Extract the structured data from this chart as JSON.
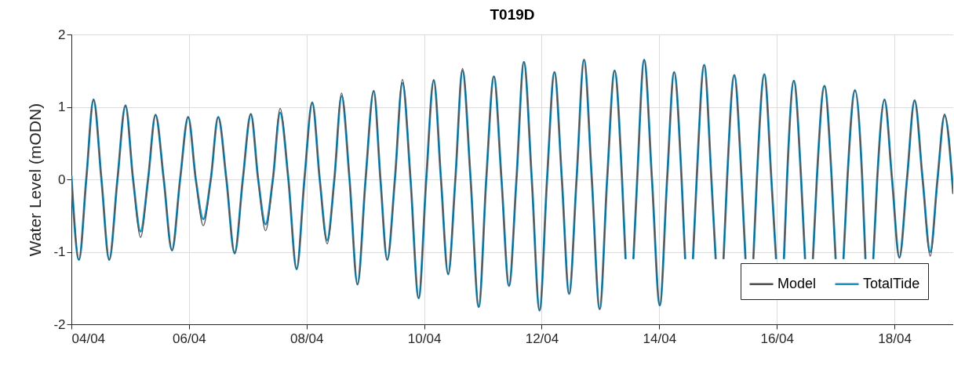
{
  "chart_data": {
    "type": "line",
    "title": "T019D",
    "ylabel": "Water Level (mODN)",
    "x": [
      "--04-04T00:00",
      "--04-04T03:06",
      "--04-04T06:04",
      "--04-04T09:03",
      "--04-04T12:16",
      "--04-04T15:27",
      "--04-04T18:48",
      "--04-04T22:05",
      "--04-05T01:11",
      "--04-05T04:15",
      "--04-05T07:18",
      "--04-05T10:21",
      "--04-05T13:42",
      "--04-05T17:04",
      "--04-05T20:23",
      "--04-05T23:41",
      "--04-06T02:47",
      "--04-06T05:51",
      "--04-06T08:54",
      "--04-06T11:56",
      "--04-06T15:17",
      "--04-06T18:39",
      "--04-06T21:59",
      "--04-07T01:16",
      "--04-07T04:15",
      "--04-07T07:16",
      "--04-07T10:15",
      "--04-07T13:13",
      "--04-07T16:35",
      "--04-07T19:57",
      "--04-07T23:08",
      "--04-08T02:20",
      "--04-08T05:23",
      "--04-08T08:25",
      "--04-08T11:21",
      "--04-08T14:18",
      "--04-08T17:33",
      "--04-08T20:48",
      "--04-09T00:06",
      "--04-09T03:26",
      "--04-09T06:10",
      "--04-09T08:57",
      "--04-09T12:04",
      "--04-09T15:09",
      "--04-09T18:27",
      "--04-09T21:46",
      "--04-10T00:52",
      "--04-10T03:56",
      "--04-10T06:53",
      "--04-10T09:49",
      "--04-10T12:45",
      "--04-10T15:40",
      "--04-10T18:59",
      "--04-10T22:18",
      "--04-11T01:22",
      "--04-11T04:29",
      "--04-11T07:35",
      "--04-11T10:39",
      "--04-11T13:42",
      "--04-11T16:44",
      "--04-11T19:57",
      "--04-11T23:08",
      "--04-12T02:11",
      "--04-12T05:12",
      "--04-12T08:14",
      "--04-12T11:12",
      "--04-12T14:14",
      "--04-12T17:17",
      "--04-12T20:28",
      "--04-12T23:41",
      "--04-13T02:43",
      "--04-13T05:46",
      "--04-13T08:48",
      "--04-13T10:15",
      "--04-13T11:50",
      "--04-13T13:26",
      "--04-13T14:59",
      "--04-13T17:50",
      "--04-13T21:01",
      "--04-14T00:13",
      "--04-14T03:12",
      "--04-14T06:04",
      "--04-14T09:07",
      "--04-14T10:34",
      "--04-14T12:10",
      "--04-14T13:45",
      "--04-14T15:16",
      "--04-14T18:20",
      "--04-14T21:17",
      "--04-14T23:02",
      "--04-15T00:39",
      "--04-15T02:14",
      "--04-15T03:40",
      "--04-15T06:37",
      "--04-15T09:36",
      "--04-15T11:12",
      "--04-15T12:48",
      "--04-15T14:24",
      "--04-15T15:50",
      "--04-15T18:53",
      "--04-15T21:46",
      "--04-15T23:41",
      "--04-16T01:16",
      "--04-16T02:53",
      "--04-16T04:09",
      "--04-16T06:56",
      "--04-16T09:55",
      "--04-16T11:31",
      "--04-16T13:08",
      "--04-16T14:43",
      "--04-16T16:19",
      "--04-16T19:25",
      "--04-16T22:24",
      "--04-17T00:00",
      "--04-17T01:36",
      "--04-17T03:12",
      "--04-17T04:48",
      "--04-17T07:54",
      "--04-17T10:52",
      "--04-17T12:10",
      "--04-17T13:45",
      "--04-17T15:22",
      "--04-17T16:58",
      "--04-17T19:57",
      "--04-17T23:02",
      "--04-18T02:01",
      "--04-18T05:07",
      "--04-18T08:14",
      "--04-18T11:31",
      "--04-18T14:37",
      "--04-18T17:35",
      "--04-18T20:28",
      "--04-19T00:00"
    ],
    "series": [
      {
        "name": "Model",
        "color": "#505050",
        "values": [
          0.05,
          -1.11,
          0,
          1.1,
          0,
          -1.11,
          0,
          1.02,
          0,
          -0.8,
          0,
          0.89,
          0,
          -0.98,
          0,
          0.86,
          0,
          -0.64,
          0,
          0.86,
          0,
          -1.02,
          0,
          0.9,
          0,
          -0.71,
          0,
          0.98,
          0,
          -1.24,
          0,
          1.06,
          0,
          -0.89,
          0,
          1.19,
          0,
          -1.45,
          0,
          1.22,
          0,
          -1.11,
          0,
          1.38,
          0,
          -1.64,
          0,
          1.37,
          0,
          -1.31,
          0,
          1.53,
          0,
          -1.76,
          0,
          1.42,
          0,
          -1.47,
          0,
          1.62,
          0,
          -1.81,
          0,
          1.48,
          0,
          -1.58,
          0,
          1.65,
          0,
          -1.79,
          0,
          1.5,
          0,
          -1.1,
          null,
          -1.1,
          0,
          1.65,
          0,
          -1.74,
          0,
          1.48,
          0,
          -1.1,
          null,
          -1.1,
          0,
          1.58,
          0,
          -1.1,
          null,
          -1.1,
          0,
          1.44,
          0,
          -1.1,
          null,
          -1.1,
          0,
          1.45,
          0,
          -1.1,
          null,
          -1.1,
          0,
          1.36,
          0,
          -1.1,
          null,
          -1.1,
          0,
          1.29,
          0,
          -1.1,
          null,
          -1.1,
          0,
          1.23,
          0,
          -1.1,
          null,
          -1.1,
          0,
          1.1,
          0,
          -1.08,
          0,
          1.09,
          0,
          -1.06,
          0,
          0.9,
          -0.2
        ]
      },
      {
        "name": "TotalTide",
        "color": "#1a92c4",
        "values": [
          0.05,
          -1.11,
          0,
          1.1,
          0,
          -1.11,
          0,
          1.02,
          0,
          -0.72,
          0,
          0.89,
          0,
          -0.98,
          0,
          0.86,
          0,
          -0.55,
          0,
          0.86,
          0,
          -1.02,
          0,
          0.9,
          0,
          -0.62,
          0,
          0.92,
          0,
          -1.24,
          0,
          1.06,
          0,
          -0.84,
          0,
          1.15,
          0,
          -1.45,
          0,
          1.22,
          0,
          -1.11,
          0,
          1.33,
          0,
          -1.64,
          0,
          1.37,
          0,
          -1.31,
          0,
          1.5,
          0,
          -1.76,
          0,
          1.42,
          0,
          -1.47,
          0,
          1.62,
          0,
          -1.81,
          0,
          1.48,
          0,
          -1.58,
          0,
          1.65,
          0,
          -1.79,
          0,
          1.5,
          0,
          -1.1,
          null,
          -1.1,
          0,
          1.65,
          0,
          -1.74,
          0,
          1.48,
          0,
          -1.1,
          null,
          -1.1,
          0,
          1.58,
          0,
          -1.1,
          null,
          -1.1,
          0,
          1.44,
          0,
          -1.1,
          null,
          -1.1,
          0,
          1.45,
          0,
          -1.1,
          null,
          -1.1,
          0,
          1.36,
          0,
          -1.1,
          null,
          -1.1,
          0,
          1.29,
          0,
          -1.1,
          null,
          -1.1,
          0,
          1.23,
          0,
          -1.1,
          null,
          -1.1,
          0,
          1.1,
          0,
          -1.08,
          0,
          1.09,
          0,
          -1.0,
          0,
          0.88,
          -0.2
        ]
      }
    ],
    "xlim": [
      "--04-04",
      "--04-19"
    ],
    "xticks": [
      {
        "value": "--04-04",
        "label": "04/04"
      },
      {
        "value": "--04-06",
        "label": "06/04"
      },
      {
        "value": "--04-08",
        "label": "08/04"
      },
      {
        "value": "--04-10",
        "label": "10/04"
      },
      {
        "value": "--04-12",
        "label": "12/04"
      },
      {
        "value": "--04-14",
        "label": "14/04"
      },
      {
        "value": "--04-16",
        "label": "16/04"
      },
      {
        "value": "--04-18",
        "label": "18/04"
      }
    ],
    "ylim": [
      -2,
      2
    ],
    "yticks": [
      -2,
      -1,
      0,
      1,
      2
    ],
    "grid": true,
    "legend": "bottom right",
    "marker": "none",
    "line_style": "solid"
  }
}
